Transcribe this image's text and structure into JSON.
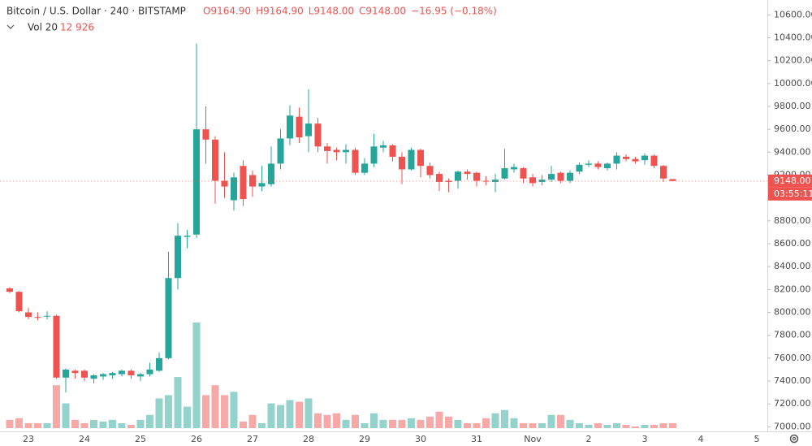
{
  "chart_data": {
    "type": "candlestick",
    "title": "Bitcoin / U.S. Dollar · 240 · BITSTAMP",
    "ohlc_legend": [
      "O9164.90",
      "H9164.90",
      "L9148.00",
      "C9148.00",
      "−16.95 (−0.18%)"
    ],
    "volume_label": "Vol 20",
    "volume_value_label": "12 926",
    "up_color": "#26a69a",
    "down_color": "#ef5350",
    "volume_up_color": "#94d3cc",
    "volume_down_color": "#f7a9a7",
    "categories": [
      null,
      null,
      "23",
      null,
      null,
      null,
      null,
      null,
      "24",
      null,
      null,
      null,
      null,
      null,
      "25",
      null,
      null,
      null,
      null,
      null,
      "26",
      null,
      null,
      null,
      null,
      null,
      "27",
      null,
      null,
      null,
      null,
      null,
      "28",
      null,
      null,
      null,
      null,
      null,
      "29",
      null,
      null,
      null,
      null,
      null,
      "30",
      null,
      null,
      null,
      null,
      null,
      "31",
      null,
      null,
      null,
      null,
      null,
      "Nov",
      null,
      null,
      null,
      null,
      null,
      "2",
      null,
      null,
      null,
      null,
      null,
      "3",
      null,
      null,
      null,
      null,
      null,
      "4",
      null,
      null,
      null,
      null,
      null,
      "5",
      null
    ],
    "open": [
      8210,
      8180,
      8000,
      7960,
      7965,
      7970,
      7430,
      7490,
      7490,
      7420,
      7440,
      7450,
      7460,
      7490,
      7440,
      7460,
      7490,
      7600,
      8300,
      8660,
      8680,
      9600,
      9510,
      9150,
      8980,
      9280,
      9200,
      9100,
      9120,
      9300,
      9520,
      9710,
      9540,
      9650,
      9450,
      9420,
      9400,
      9420,
      9220,
      9300,
      9440,
      9460,
      9360,
      9250,
      9420,
      9280,
      9210,
      9150,
      9150,
      9230,
      9220,
      9150,
      9140,
      9170,
      9250,
      9260,
      9180,
      9140,
      9160,
      9220,
      9150,
      9230,
      9290,
      9300,
      9260,
      9300,
      9360,
      9340,
      9330,
      9370,
      9280,
      9164.9,
      null,
      null,
      null,
      null,
      null,
      null,
      null,
      null,
      null,
      null
    ],
    "high": [
      8220,
      8185,
      8040,
      8000,
      8010,
      7980,
      7510,
      7500,
      7500,
      7460,
      7470,
      7480,
      7500,
      7500,
      7470,
      7560,
      7650,
      8530,
      8780,
      8720,
      10350,
      9800,
      9540,
      9400,
      9220,
      9330,
      9240,
      9280,
      9450,
      9600,
      9810,
      9790,
      9950,
      9700,
      9480,
      9440,
      9470,
      9440,
      9350,
      9560,
      9500,
      9470,
      9400,
      9440,
      9430,
      9310,
      9230,
      9170,
      9240,
      9250,
      9230,
      9190,
      9210,
      9430,
      9300,
      9270,
      9210,
      9200,
      9280,
      9230,
      9240,
      9310,
      9330,
      9320,
      9310,
      9400,
      9380,
      9360,
      9390,
      9380,
      9290,
      9164.9,
      null,
      null,
      null,
      null,
      null,
      null,
      null,
      null,
      null,
      null
    ],
    "low": [
      8170,
      8000,
      7940,
      7930,
      7940,
      7420,
      7300,
      7420,
      7400,
      7380,
      7410,
      7420,
      7440,
      7420,
      7400,
      7440,
      7480,
      7590,
      8200,
      8560,
      8650,
      9300,
      8950,
      9000,
      8890,
      8930,
      9010,
      9060,
      9100,
      9250,
      9460,
      9480,
      9400,
      9400,
      9300,
      9330,
      9300,
      9200,
      9200,
      9270,
      9400,
      9320,
      9120,
      9240,
      9180,
      9170,
      9060,
      9050,
      9080,
      9160,
      9100,
      9110,
      9050,
      9160,
      9220,
      9130,
      9100,
      9110,
      9140,
      9130,
      9130,
      9210,
      9270,
      9250,
      9240,
      9250,
      9320,
      9300,
      9290,
      9260,
      9140,
      9148,
      null,
      null,
      null,
      null,
      null,
      null,
      null,
      null,
      null,
      null
    ],
    "close": [
      8180,
      8010,
      7960,
      7955,
      7970,
      7430,
      7500,
      7470,
      7430,
      7450,
      7460,
      7470,
      7490,
      7450,
      7460,
      7500,
      7600,
      8300,
      8670,
      8670,
      9600,
      9510,
      9150,
      9100,
      9180,
      8990,
      9100,
      9130,
      9300,
      9520,
      9720,
      9530,
      9650,
      9450,
      9410,
      9400,
      9420,
      9220,
      9300,
      9450,
      9460,
      9360,
      9250,
      9420,
      9280,
      9200,
      9140,
      9140,
      9230,
      9210,
      9150,
      9145,
      9160,
      9260,
      9270,
      9170,
      9130,
      9160,
      9210,
      9150,
      9220,
      9290,
      9300,
      9270,
      9300,
      9370,
      9340,
      9320,
      9370,
      9280,
      9170,
      9148,
      null,
      null,
      null,
      null,
      null,
      null,
      null,
      null,
      null,
      null
    ],
    "volume": [
      21500,
      25800,
      12900,
      12900,
      12900,
      111800,
      64500,
      21500,
      12900,
      21500,
      17200,
      21500,
      12900,
      8600,
      21500,
      34400,
      77400,
      86000,
      133300,
      55900,
      275200,
      86000,
      111800,
      86000,
      94600,
      17200,
      34400,
      12900,
      64500,
      60200,
      73100,
      68800,
      77400,
      38700,
      34400,
      38700,
      21500,
      34400,
      12900,
      38700,
      21500,
      21500,
      21500,
      25800,
      21500,
      30100,
      43000,
      30100,
      21500,
      12900,
      12900,
      25800,
      38700,
      47300,
      25800,
      12900,
      12900,
      12900,
      34400,
      34400,
      21500,
      12900,
      8600,
      12900,
      8600,
      12900,
      8600,
      4300,
      8600,
      8600,
      12900,
      12926,
      null,
      null,
      null,
      null,
      null,
      null,
      null,
      null,
      null,
      null
    ],
    "ylim": [
      6960,
      10730
    ],
    "yticks": [
      {
        "value": 7000,
        "label": "7000.00"
      },
      {
        "value": 7200,
        "label": "7200.00"
      },
      {
        "value": 7400,
        "label": "7400.00"
      },
      {
        "value": 7600,
        "label": "7600.00"
      },
      {
        "value": 7800,
        "label": "7800.00"
      },
      {
        "value": 8000,
        "label": "8000.00"
      },
      {
        "value": 8200,
        "label": "8200.00"
      },
      {
        "value": 8400,
        "label": "8400.00"
      },
      {
        "value": 8600,
        "label": "8600.00"
      },
      {
        "value": 8800,
        "label": "8800.00"
      },
      {
        "value": 9000,
        "label": "9000.00"
      },
      {
        "value": 9200,
        "label": "9200.00"
      },
      {
        "value": 9400,
        "label": "9400.00"
      },
      {
        "value": 9600,
        "label": "9600.00"
      },
      {
        "value": 9800,
        "label": "9800.00"
      },
      {
        "value": 10000,
        "label": "10000.00"
      },
      {
        "value": 10200,
        "label": "10200.00"
      },
      {
        "value": 10400,
        "label": "10400.00"
      },
      {
        "value": 10600,
        "label": "10600.00"
      }
    ],
    "last_price": {
      "value": 9148,
      "label": "9148.00"
    },
    "countdown": "03:55:11"
  }
}
